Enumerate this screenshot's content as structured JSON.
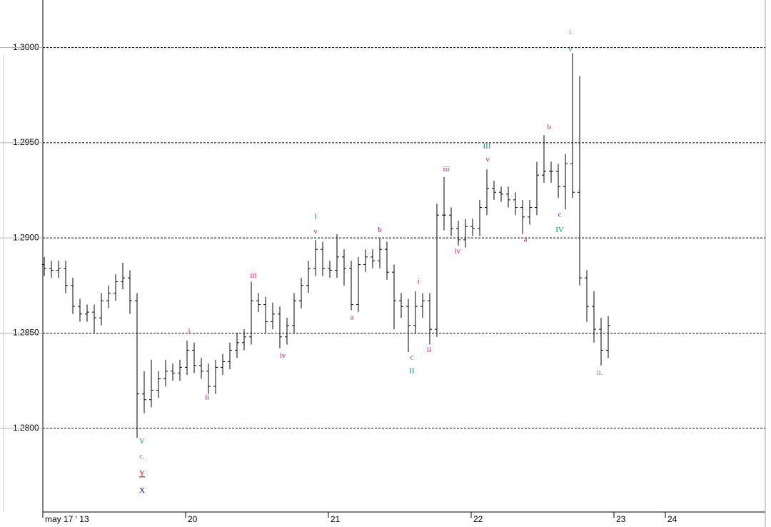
{
  "chart_data": {
    "type": "ohlc",
    "xlim": [
      0,
      5.05
    ],
    "ylim": [
      1.2756,
      1.3025
    ],
    "xticks": [
      {
        "value": 0,
        "label": "may 17 ' 13"
      },
      {
        "value": 1,
        "label": "20"
      },
      {
        "value": 2,
        "label": "21"
      },
      {
        "value": 3,
        "label": "22"
      },
      {
        "value": 4,
        "label": "23"
      },
      {
        "value": 4.36,
        "label": "24"
      }
    ],
    "yticks": [
      {
        "value": 1.3,
        "label": "1.3000"
      },
      {
        "value": 1.295,
        "label": "1.2950"
      },
      {
        "value": 1.29,
        "label": "1.2900"
      },
      {
        "value": 1.285,
        "label": "1.2850"
      },
      {
        "value": 1.28,
        "label": "1.2800"
      }
    ],
    "grid": true,
    "color": "#000000",
    "x": [
      0.01,
      0.06,
      0.11,
      0.16,
      0.21,
      0.26,
      0.31,
      0.36,
      0.41,
      0.46,
      0.51,
      0.56,
      0.61,
      0.66,
      0.71,
      0.76,
      0.81,
      0.86,
      0.91,
      0.96,
      1.01,
      1.06,
      1.11,
      1.16,
      1.21,
      1.26,
      1.31,
      1.36,
      1.41,
      1.46,
      1.51,
      1.56,
      1.61,
      1.66,
      1.71,
      1.76,
      1.81,
      1.86,
      1.91,
      1.96,
      2.01,
      2.06,
      2.11,
      2.16,
      2.21,
      2.26,
      2.31,
      2.36,
      2.41,
      2.46,
      2.51,
      2.56,
      2.61,
      2.66,
      2.71,
      2.76,
      2.81,
      2.86,
      2.91,
      2.96,
      3.01,
      3.06,
      3.11,
      3.16,
      3.21,
      3.26,
      3.31,
      3.36,
      3.41,
      3.46,
      3.51,
      3.56,
      3.61,
      3.66,
      3.71,
      3.76,
      3.81,
      3.86,
      3.91,
      3.96
    ],
    "open": [
      1.2886,
      1.2884,
      1.2883,
      1.2884,
      1.2875,
      1.2864,
      1.286,
      1.2861,
      1.2858,
      1.2867,
      1.2871,
      1.2877,
      1.2879,
      1.2867,
      1.2818,
      1.2815,
      1.282,
      1.2826,
      1.283,
      1.2829,
      1.2832,
      1.2841,
      1.2833,
      1.283,
      1.2822,
      1.2832,
      1.2835,
      1.2841,
      1.2845,
      1.2848,
      1.2867,
      1.2865,
      1.2856,
      1.286,
      1.2848,
      1.2854,
      1.2867,
      1.2875,
      1.2884,
      1.2894,
      1.2884,
      1.2883,
      1.289,
      1.2884,
      1.2865,
      1.2886,
      1.289,
      1.2888,
      1.2894,
      1.2882,
      1.2867,
      1.2864,
      1.2854,
      1.2864,
      1.2867,
      1.2852,
      1.2912,
      1.2912,
      1.2905,
      1.2899,
      1.2906,
      1.2905,
      1.2916,
      1.2926,
      1.2924,
      1.2923,
      1.292,
      1.2916,
      1.2911,
      1.2916,
      1.2933,
      1.2935,
      1.2935,
      1.2927,
      1.2939,
      1.2924,
      1.2879,
      1.2864,
      1.2852,
      1.2841
    ],
    "high": [
      1.289,
      1.2888,
      1.2888,
      1.2888,
      1.2879,
      1.2868,
      1.2865,
      1.2865,
      1.2871,
      1.2875,
      1.2881,
      1.2887,
      1.2883,
      1.2871,
      1.283,
      1.2836,
      1.283,
      1.2836,
      1.2834,
      1.2836,
      1.2846,
      1.2845,
      1.2837,
      1.2834,
      1.2836,
      1.2839,
      1.2845,
      1.285,
      1.2852,
      1.2877,
      1.2871,
      1.2869,
      1.2866,
      1.2864,
      1.2858,
      1.2871,
      1.2879,
      1.2888,
      1.2899,
      1.2898,
      1.2888,
      1.2902,
      1.2894,
      1.2888,
      1.289,
      1.2894,
      1.2894,
      1.29,
      1.2898,
      1.2886,
      1.2871,
      1.2868,
      1.2872,
      1.2871,
      1.2871,
      1.2918,
      1.2932,
      1.2916,
      1.2909,
      1.291,
      1.291,
      1.292,
      1.2936,
      1.293,
      1.2927,
      1.2927,
      1.2924,
      1.292,
      1.292,
      1.294,
      1.2954,
      1.294,
      1.2939,
      1.2944,
      1.2997,
      1.2985,
      1.2883,
      1.2872,
      1.2858,
      1.2859
    ],
    "low": [
      1.288,
      1.2879,
      1.2879,
      1.2871,
      1.286,
      1.2856,
      1.2856,
      1.285,
      1.2854,
      1.2863,
      1.2867,
      1.2873,
      1.286,
      1.2795,
      1.2808,
      1.2811,
      1.2816,
      1.2822,
      1.2825,
      1.2825,
      1.2828,
      1.2829,
      1.2826,
      1.2818,
      1.2818,
      1.2828,
      1.2831,
      1.2837,
      1.2841,
      1.2844,
      1.2861,
      1.285,
      1.2852,
      1.2842,
      1.2844,
      1.285,
      1.2863,
      1.2871,
      1.288,
      1.288,
      1.2879,
      1.2879,
      1.2875,
      1.2862,
      1.2861,
      1.2882,
      1.2884,
      1.2884,
      1.2878,
      1.2852,
      1.2858,
      1.284,
      1.285,
      1.2858,
      1.2844,
      1.2848,
      1.2904,
      1.2901,
      1.2896,
      1.2895,
      1.2901,
      1.2901,
      1.2912,
      1.292,
      1.2919,
      1.2916,
      1.2912,
      1.2902,
      1.2907,
      1.2912,
      1.2929,
      1.2929,
      1.2921,
      1.2915,
      1.2921,
      1.2875,
      1.2856,
      1.2845,
      1.2833,
      1.2837
    ],
    "close": [
      1.2884,
      1.2883,
      1.2884,
      1.2875,
      1.2864,
      1.286,
      1.2861,
      1.2858,
      1.2867,
      1.2871,
      1.2877,
      1.2879,
      1.2867,
      1.2818,
      1.2815,
      1.282,
      1.2826,
      1.283,
      1.2829,
      1.2832,
      1.2841,
      1.2833,
      1.283,
      1.2822,
      1.2832,
      1.2835,
      1.2841,
      1.2845,
      1.2848,
      1.2867,
      1.2865,
      1.2856,
      1.286,
      1.2848,
      1.2854,
      1.2867,
      1.2875,
      1.2884,
      1.2894,
      1.2884,
      1.2883,
      1.289,
      1.2884,
      1.2865,
      1.2886,
      1.289,
      1.2888,
      1.2894,
      1.2882,
      1.2867,
      1.2864,
      1.2854,
      1.2864,
      1.2867,
      1.2852,
      1.2912,
      1.2912,
      1.2905,
      1.2899,
      1.2906,
      1.2905,
      1.2916,
      1.2926,
      1.2924,
      1.2923,
      1.292,
      1.2916,
      1.2911,
      1.2916,
      1.2933,
      1.2935,
      1.2935,
      1.2927,
      1.2939,
      1.2924,
      1.2879,
      1.2864,
      1.2852,
      1.2841,
      1.2854
    ],
    "annotations": [
      {
        "text": "i.",
        "x": 3.7,
        "y": 1.3008,
        "color": "#808080"
      },
      {
        "text": "v",
        "x": 3.695,
        "y": 1.2999,
        "color": "#009a78"
      },
      {
        "text": "b",
        "x": 3.545,
        "y": 1.2958,
        "color": "#e0107a"
      },
      {
        "text": "III",
        "x": 3.11,
        "y": 1.2948,
        "color": "#009a78"
      },
      {
        "text": "v",
        "x": 3.115,
        "y": 1.2941,
        "color": "#e0107a"
      },
      {
        "text": "iii",
        "x": 2.825,
        "y": 1.2936,
        "color": "#e0107a"
      },
      {
        "text": "c",
        "x": 3.62,
        "y": 1.2912,
        "color": "#e0107a"
      },
      {
        "text": "IV",
        "x": 3.62,
        "y": 1.2904,
        "color": "#009a78"
      },
      {
        "text": "a",
        "x": 3.38,
        "y": 1.2899,
        "color": "#e0107a"
      },
      {
        "text": "iv",
        "x": 2.905,
        "y": 1.2893,
        "color": "#e0107a"
      },
      {
        "text": "I",
        "x": 1.91,
        "y": 1.2911,
        "color": "#009a78"
      },
      {
        "text": "v",
        "x": 1.91,
        "y": 1.2903,
        "color": "#e0107a"
      },
      {
        "text": "b",
        "x": 2.36,
        "y": 1.2904,
        "color": "#e0107a"
      },
      {
        "text": "iii",
        "x": 1.475,
        "y": 1.288,
        "color": "#e0107a"
      },
      {
        "text": "i",
        "x": 2.63,
        "y": 1.2877,
        "color": "#e0107a"
      },
      {
        "text": "a",
        "x": 2.165,
        "y": 1.2858,
        "color": "#e0107a"
      },
      {
        "text": "i",
        "x": 1.025,
        "y": 1.2851,
        "color": "#e0107a"
      },
      {
        "text": "iv",
        "x": 1.68,
        "y": 1.2838,
        "color": "#e0107a"
      },
      {
        "text": "c",
        "x": 2.585,
        "y": 1.2837,
        "color": "#e0107a"
      },
      {
        "text": "ii",
        "x": 2.705,
        "y": 1.2841,
        "color": "#e0107a"
      },
      {
        "text": "II",
        "x": 2.585,
        "y": 1.283,
        "color": "#009a78"
      },
      {
        "text": "ii.",
        "x": 3.9,
        "y": 1.2829,
        "color": "#808080"
      },
      {
        "text": "ii",
        "x": 1.15,
        "y": 1.2816,
        "color": "#e0107a"
      },
      {
        "text": "V",
        "x": 0.695,
        "y": 1.2793,
        "color": "#009a78"
      },
      {
        "text": "c.",
        "x": 0.695,
        "y": 1.2785,
        "color": "#808080"
      },
      {
        "text": "Y",
        "x": 0.695,
        "y": 1.2776,
        "color": "#e00000",
        "underline": true
      },
      {
        "text": "X",
        "x": 0.695,
        "y": 1.2767,
        "color": "#0000cc"
      }
    ]
  }
}
